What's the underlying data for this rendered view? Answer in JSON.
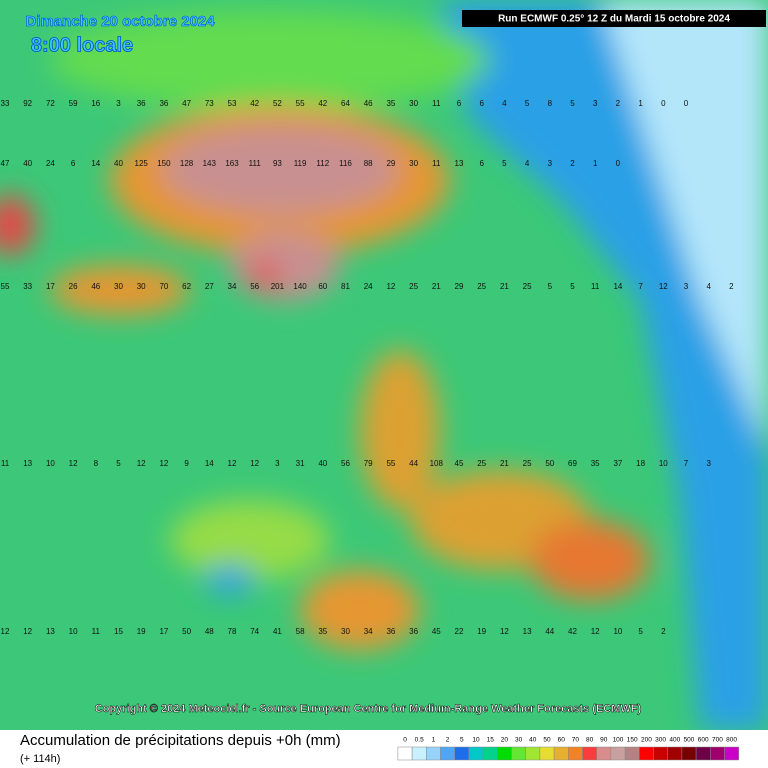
{
  "header": {
    "date": "Dimanche 20 octobre 2024",
    "time": "8:00 locale",
    "run": "Run ECMWF 0.25° 12 Z du Mardi 15 octobre 2024"
  },
  "map": {
    "rows": [
      [
        33,
        92,
        72,
        59,
        16,
        3,
        36,
        36,
        47,
        73,
        53,
        42,
        52,
        55,
        42,
        64,
        46,
        35,
        30,
        11,
        6,
        6,
        4,
        5,
        8,
        5,
        3,
        2,
        1,
        0,
        0
      ],
      [
        47,
        40,
        24,
        6,
        14,
        40,
        125,
        150,
        128,
        143,
        163,
        111,
        93,
        119,
        112,
        116,
        88,
        29,
        30,
        11,
        13,
        6,
        5,
        4,
        3,
        2,
        1,
        0
      ],
      [
        55,
        33,
        17,
        26,
        46,
        30,
        30,
        70,
        62,
        27,
        34,
        56,
        201,
        140,
        60,
        81,
        24,
        12,
        25,
        21,
        29,
        25,
        21,
        25,
        5,
        5,
        11,
        14,
        7,
        12,
        3,
        4,
        2
      ],
      [
        11,
        13,
        10,
        12,
        8,
        5,
        12,
        12,
        9,
        14,
        12,
        12,
        3,
        31,
        40,
        56,
        79,
        55,
        44,
        108,
        45,
        25,
        21,
        25,
        50,
        69,
        35,
        37,
        18,
        10,
        7,
        3
      ],
      [
        12,
        12,
        13,
        10,
        11,
        15,
        19,
        17,
        50,
        48,
        78,
        74,
        41,
        58,
        35,
        30,
        34,
        36,
        36,
        45,
        22,
        19,
        12,
        13,
        44,
        42,
        12,
        10,
        5,
        2
      ]
    ]
  },
  "footer": {
    "copyright": "Copyright © 2024 Meteociel.fr - Source European Centre for Medium-Range Weather Forecasts (ECMWF)",
    "title": "Accumulation de précipitations depuis +0h (mm)",
    "subtitle": "(+ 114h)"
  },
  "legend": {
    "labels": [
      "0",
      "0.5",
      "1",
      "2",
      "5",
      "10",
      "15",
      "20",
      "30",
      "40",
      "50",
      "60",
      "70",
      "80",
      "90",
      "100",
      "150",
      "200",
      "300",
      "400",
      "500",
      "600",
      "700",
      "800"
    ],
    "colors": [
      "#ffffff",
      "#c8f0ff",
      "#96d2fa",
      "#50a5f5",
      "#1e6eeb",
      "#00c8c8",
      "#00d28c",
      "#00dc00",
      "#64e632",
      "#a0e632",
      "#e6dc32",
      "#e6af2d",
      "#f08228",
      "#fa3c3c",
      "#d88c8c",
      "#c8a0a0",
      "#b48282",
      "#ff0000",
      "#c80000",
      "#a00000",
      "#780000",
      "#6e0046",
      "#a0006e",
      "#c800c8"
    ]
  }
}
